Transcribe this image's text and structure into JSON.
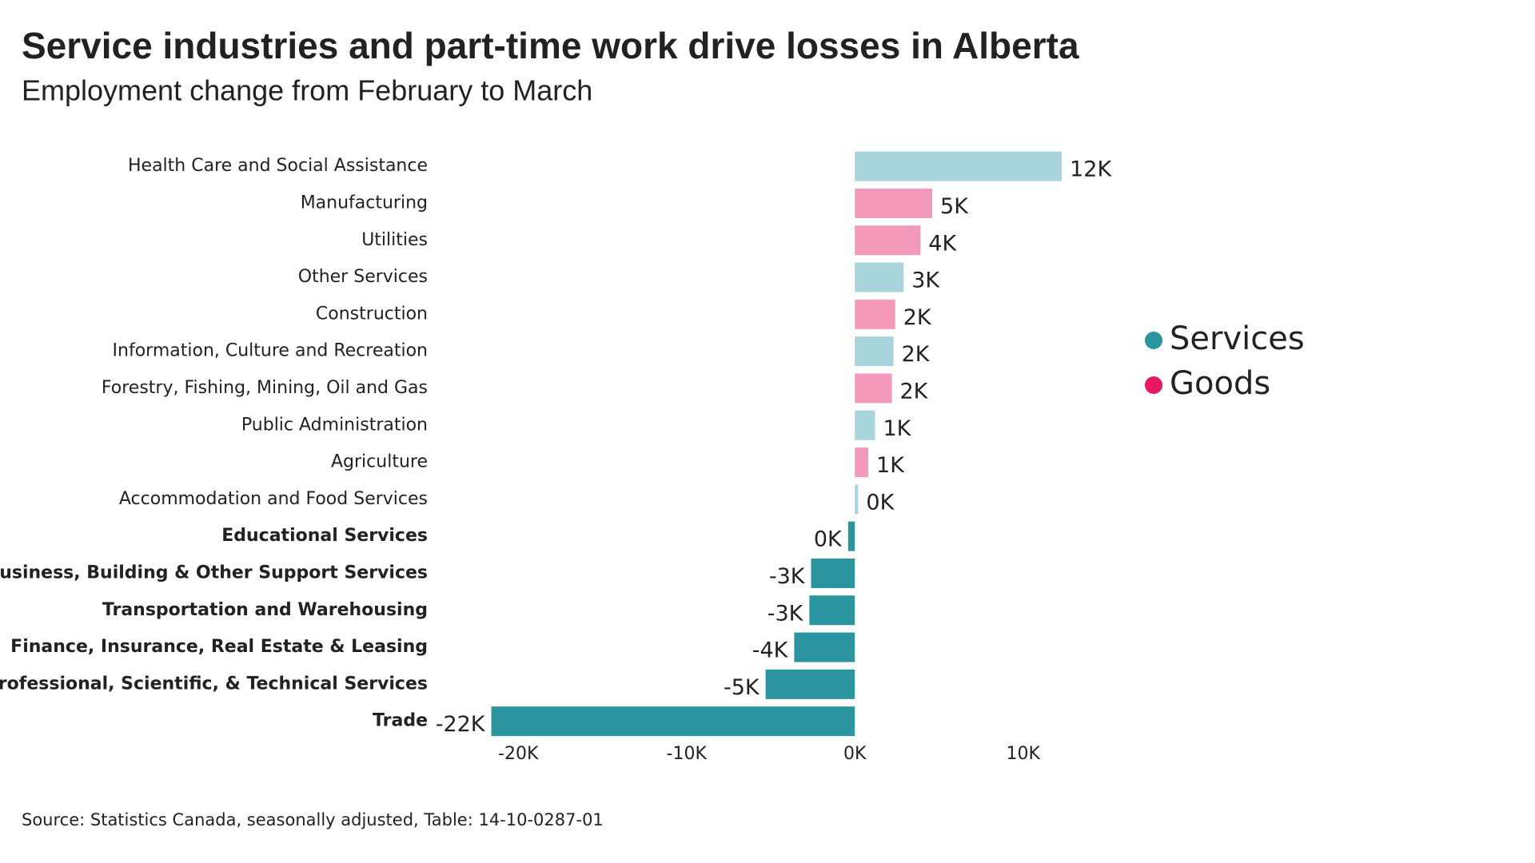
{
  "chart_data": {
    "type": "bar",
    "orientation": "horizontal",
    "title": "Service industries and part-time work drive losses in Alberta",
    "subtitle": "Employment change from February to March",
    "source": "Source: Statistics Canada, seasonally adjusted, Table: 14-10-0287-01",
    "categories": [
      "Health Care and Social Assistance",
      "Manufacturing",
      "Utilities",
      "Other Services",
      "Construction",
      "Information, Culture and Recreation",
      "Forestry, Fishing, Mining, Oil and Gas",
      "Public Administration",
      "Agriculture",
      "Accommodation and Food Services",
      "Educational Services",
      "Business, Building & Other Support Services",
      "Transportation and Warehousing",
      "Finance, Insurance, Real Estate & Leasing",
      "Professional, Scientific, & Technical Services",
      "Trade"
    ],
    "series": [
      {
        "name": "Services",
        "color": "#2a959e",
        "values": [
          12.3,
          null,
          null,
          2.9,
          null,
          2.3,
          null,
          1.2,
          null,
          0.2,
          -0.4,
          -2.6,
          -2.7,
          -3.6,
          -5.3,
          -21.6
        ],
        "value_labels": [
          "12K",
          null,
          null,
          "3K",
          null,
          "2K",
          null,
          "1K",
          null,
          "0K",
          "0K",
          "-3K",
          "-3K",
          "-4K",
          "-5K",
          "-22K"
        ]
      },
      {
        "name": "Goods",
        "color": "#e8195f",
        "values": [
          null,
          4.6,
          3.9,
          null,
          2.4,
          null,
          2.2,
          null,
          0.8,
          null,
          null,
          null,
          null,
          null,
          null,
          null
        ],
        "value_labels": [
          null,
          "5K",
          "4K",
          null,
          "2K",
          null,
          "2K",
          null,
          "1K",
          null,
          null,
          null,
          null,
          null,
          null,
          null
        ]
      }
    ],
    "bar_colors": [
      "#a8d5dc",
      "#f599bb",
      "#f599bb",
      "#a8d5dc",
      "#f599bb",
      "#a8d5dc",
      "#f599bb",
      "#a8d5dc",
      "#f599bb",
      "#a8d5dc",
      "#2a959e",
      "#2a959e",
      "#2a959e",
      "#2a959e",
      "#2a959e",
      "#2a959e"
    ],
    "xlim": [
      -24,
      16
    ],
    "xticks": [
      {
        "value": -20,
        "label": "-20K"
      },
      {
        "value": -10,
        "label": "-10K"
      },
      {
        "value": 0,
        "label": "0K"
      },
      {
        "value": 10,
        "label": "10K"
      }
    ],
    "grid": false,
    "legend": "right"
  }
}
